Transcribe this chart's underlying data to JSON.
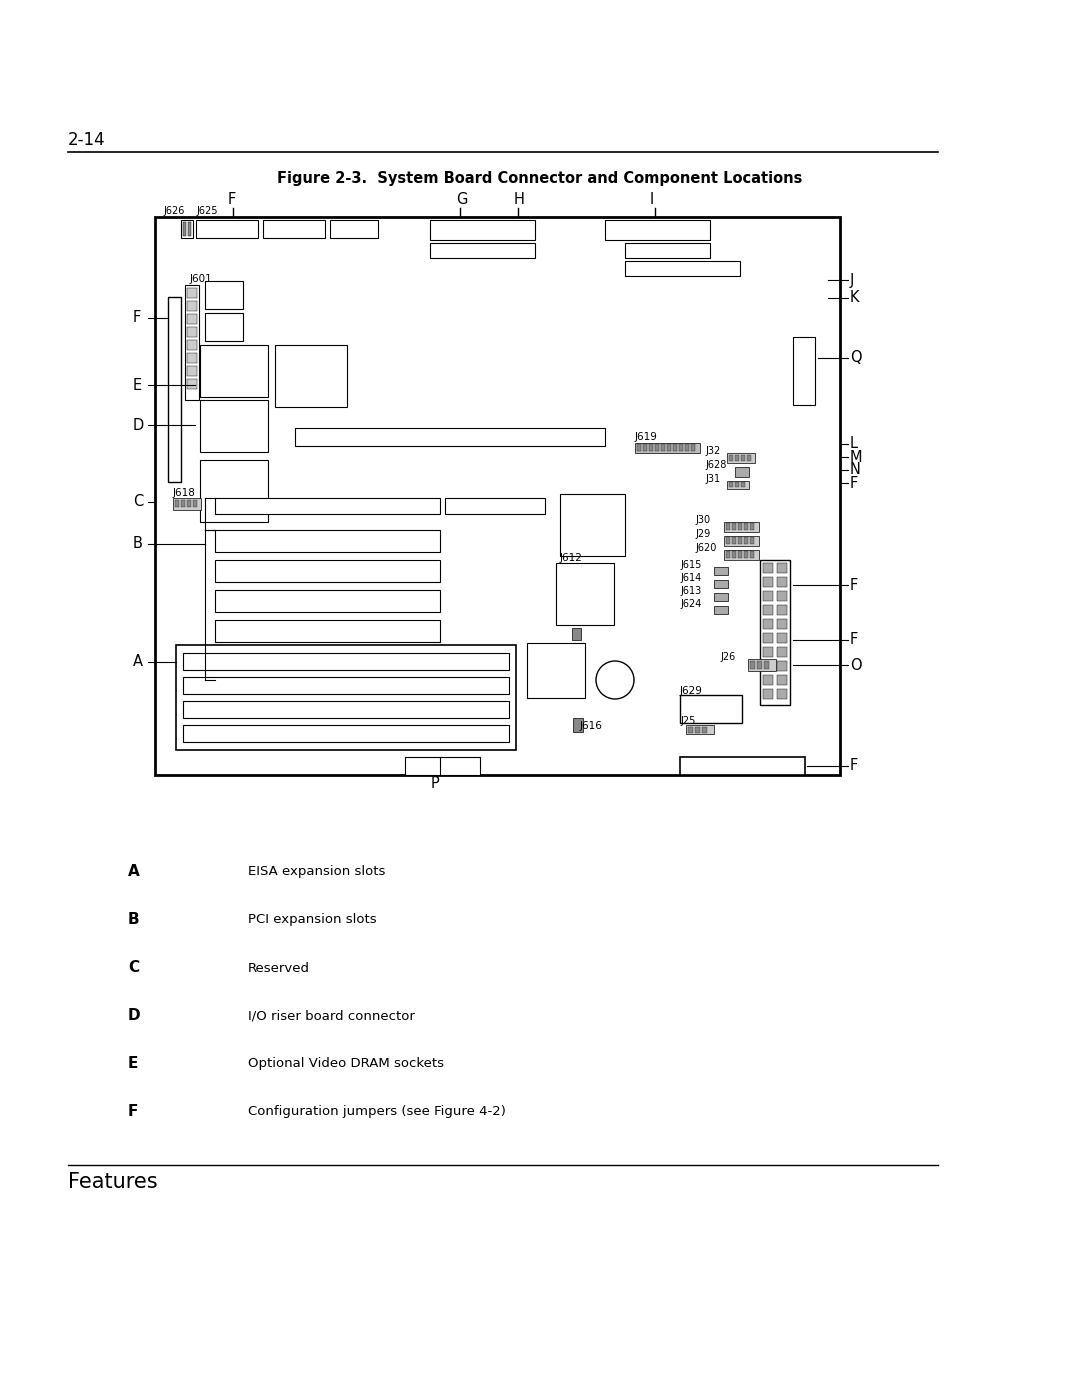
{
  "title": "Figure 2-3.  System Board Connector and Component Locations",
  "page_number": "2-14",
  "footer_section": "Features",
  "legend": [
    {
      "label": "A",
      "desc": "EISA expansion slots"
    },
    {
      "label": "B",
      "desc": "PCI expansion slots"
    },
    {
      "label": "C",
      "desc": "Reserved"
    },
    {
      "label": "D",
      "desc": "I/O riser board connector"
    },
    {
      "label": "E",
      "desc": "Optional Video DRAM sockets"
    },
    {
      "label": "F",
      "desc": "Configuration jumpers (see Figure 4-2)"
    }
  ],
  "bg_color": "#ffffff"
}
